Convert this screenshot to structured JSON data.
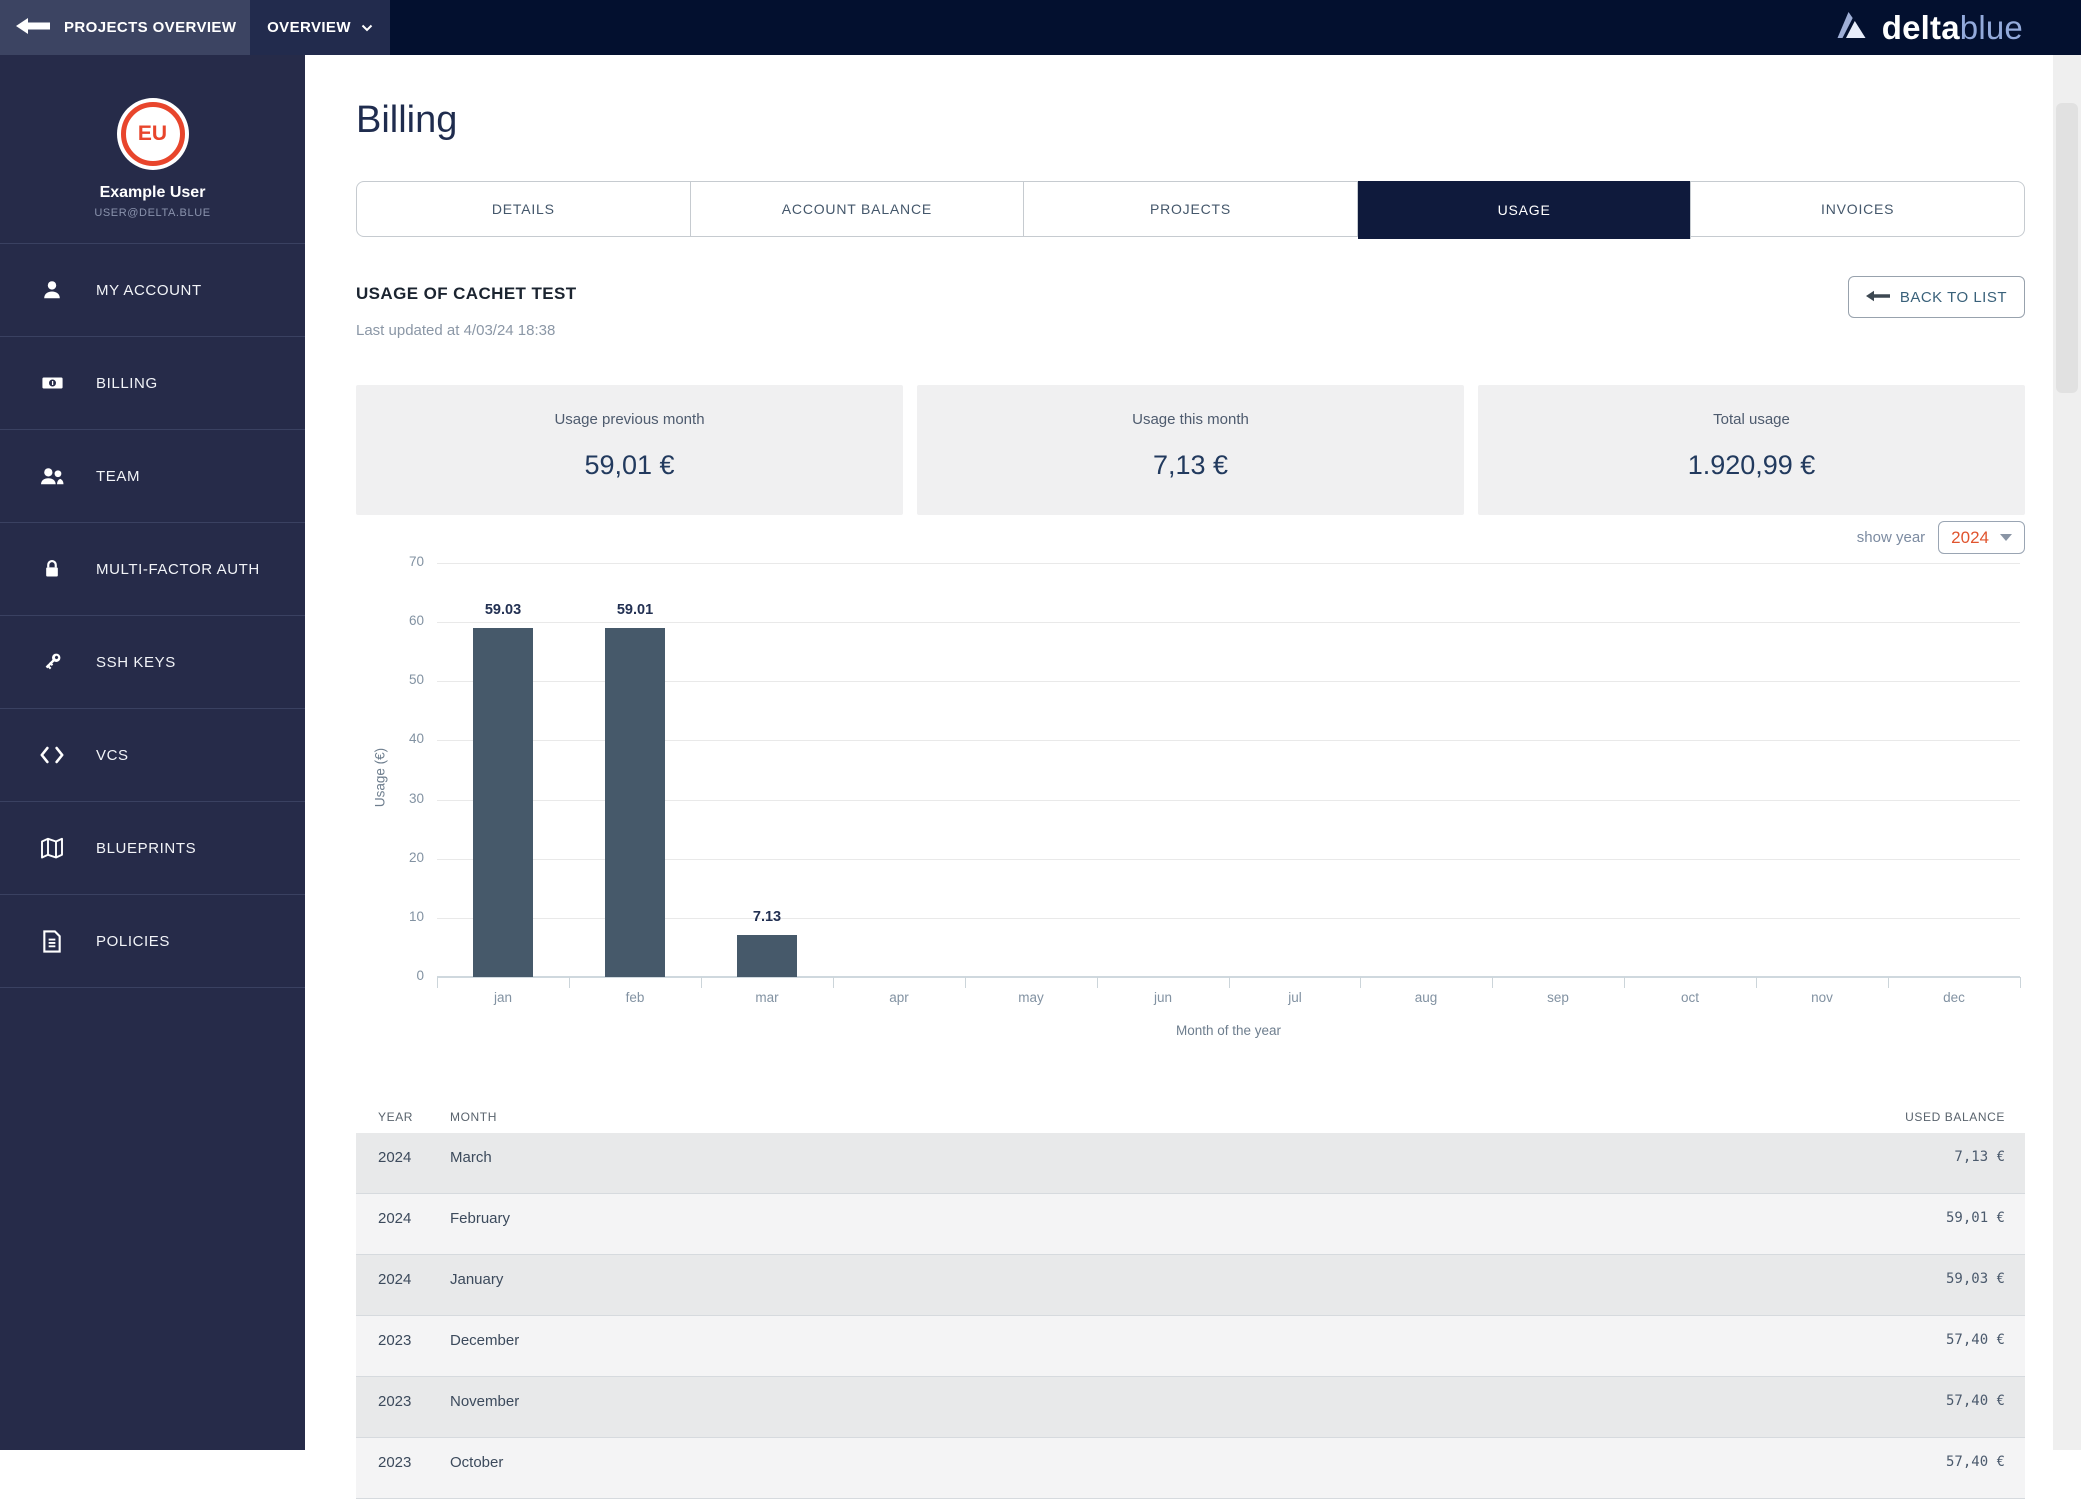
{
  "topbar": {
    "back_label": "PROJECTS OVERVIEW",
    "overview_label": "OVERVIEW",
    "brand_bold": "delta",
    "brand_light": "blue"
  },
  "sidebar": {
    "user": {
      "initials": "EU",
      "name": "Example User",
      "email": "USER@DELTA.BLUE"
    },
    "items": [
      {
        "label": "MY ACCOUNT",
        "icon": "user-icon"
      },
      {
        "label": "BILLING",
        "icon": "banknote-icon"
      },
      {
        "label": "TEAM",
        "icon": "users-icon"
      },
      {
        "label": "MULTI-FACTOR AUTH",
        "icon": "lock-icon"
      },
      {
        "label": "SSH KEYS",
        "icon": "key-icon"
      },
      {
        "label": "VCS",
        "icon": "code-icon"
      },
      {
        "label": "BLUEPRINTS",
        "icon": "map-icon"
      },
      {
        "label": "POLICIES",
        "icon": "document-icon"
      }
    ]
  },
  "page": {
    "title": "Billing",
    "tabs": [
      {
        "label": "DETAILS",
        "active": false
      },
      {
        "label": "ACCOUNT BALANCE",
        "active": false
      },
      {
        "label": "PROJECTS",
        "active": false
      },
      {
        "label": "USAGE",
        "active": true
      },
      {
        "label": "INVOICES",
        "active": false
      }
    ],
    "section_title": "USAGE OF CACHET TEST",
    "last_updated": "Last updated at 4/03/24 18:38",
    "back_to_list_label": "BACK TO LIST",
    "stats": [
      {
        "label": "Usage previous month",
        "value": "59,01 €"
      },
      {
        "label": "Usage this month",
        "value": "7,13 €"
      },
      {
        "label": "Total usage",
        "value": "1.920,99 €"
      }
    ],
    "show_year_label": "show year",
    "year_value": "2024"
  },
  "chart_data": {
    "type": "bar",
    "title": "",
    "xlabel": "Month of the year",
    "ylabel": "Usage (€)",
    "categories": [
      "jan",
      "feb",
      "mar",
      "apr",
      "may",
      "jun",
      "jul",
      "aug",
      "sep",
      "oct",
      "nov",
      "dec"
    ],
    "values": [
      59.03,
      59.01,
      7.13,
      0,
      0,
      0,
      0,
      0,
      0,
      0,
      0,
      0
    ],
    "value_labels": [
      "59.03",
      "59.01",
      "7.13"
    ],
    "ylim": [
      0,
      70
    ],
    "yticks": [
      0,
      10,
      20,
      30,
      40,
      50,
      60,
      70
    ],
    "grid": true,
    "legend": "none",
    "bar_color": "#46596a"
  },
  "table": {
    "columns": [
      "YEAR",
      "MONTH",
      "USED BALANCE"
    ],
    "rows": [
      {
        "year": "2024",
        "month": "March",
        "balance": "7,13 €"
      },
      {
        "year": "2024",
        "month": "February",
        "balance": "59,01 €"
      },
      {
        "year": "2024",
        "month": "January",
        "balance": "59,03 €"
      },
      {
        "year": "2023",
        "month": "December",
        "balance": "57,40 €"
      },
      {
        "year": "2023",
        "month": "November",
        "balance": "57,40 €"
      },
      {
        "year": "2023",
        "month": "October",
        "balance": "57,40 €"
      }
    ]
  },
  "colors": {
    "accent_red": "#e8452c",
    "accent_orange": "#e0542e",
    "active_tab_bg": "#0f1a3c",
    "bar_color": "#46596a",
    "sidebar_bg": "#262b49",
    "topbar_bg": "#03102f"
  }
}
